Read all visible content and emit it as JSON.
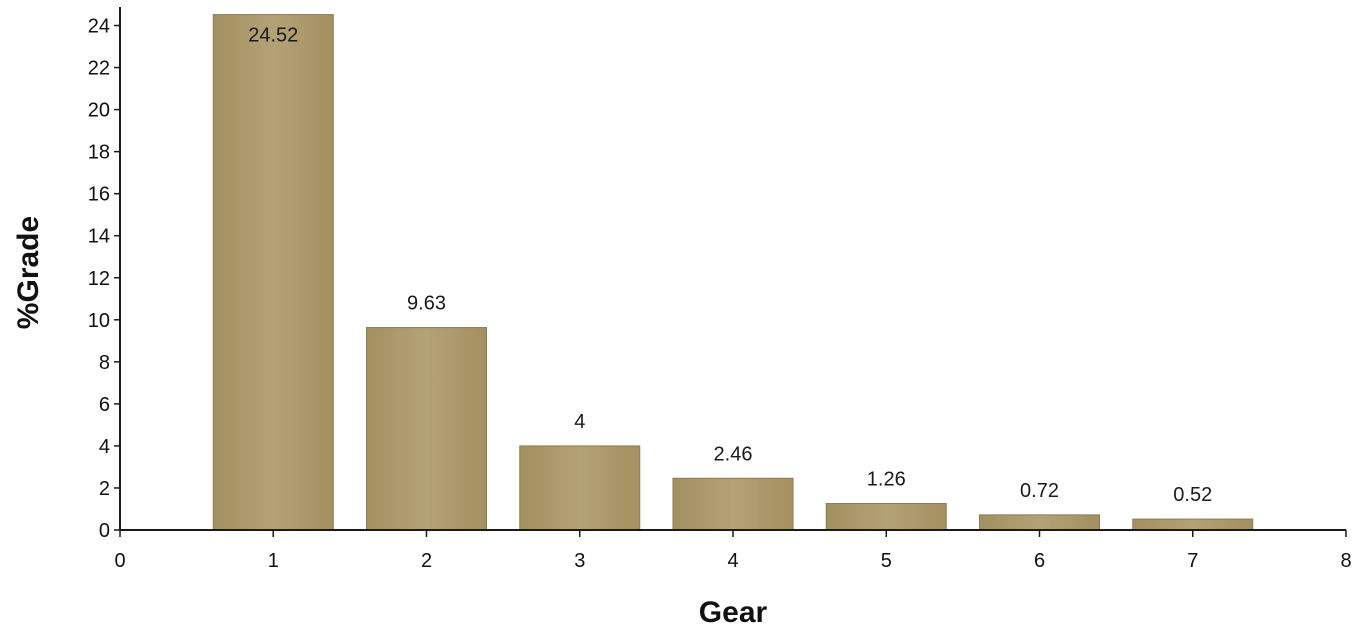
{
  "chart_data": {
    "type": "bar",
    "x": [
      1,
      2,
      3,
      4,
      5,
      6,
      7
    ],
    "values": [
      24.52,
      9.63,
      4,
      2.46,
      1.26,
      0.72,
      0.52
    ],
    "data_labels": [
      "24.52",
      "9.63",
      "4",
      "2.46",
      "1.26",
      "0.72",
      "0.52"
    ],
    "xlabel": "Gear",
    "ylabel": "%Grade",
    "xlim": [
      0,
      8
    ],
    "ylim": [
      0,
      24.5
    ],
    "xticks": [
      "0",
      "1",
      "2",
      "3",
      "4",
      "5",
      "6",
      "7",
      "8"
    ],
    "yticks": [
      "0",
      "2",
      "4",
      "6",
      "8",
      "10",
      "12",
      "14",
      "16",
      "18",
      "20",
      "22",
      "24"
    ],
    "grid": false,
    "legend": "none",
    "bar_color": "#ad9a6c"
  }
}
